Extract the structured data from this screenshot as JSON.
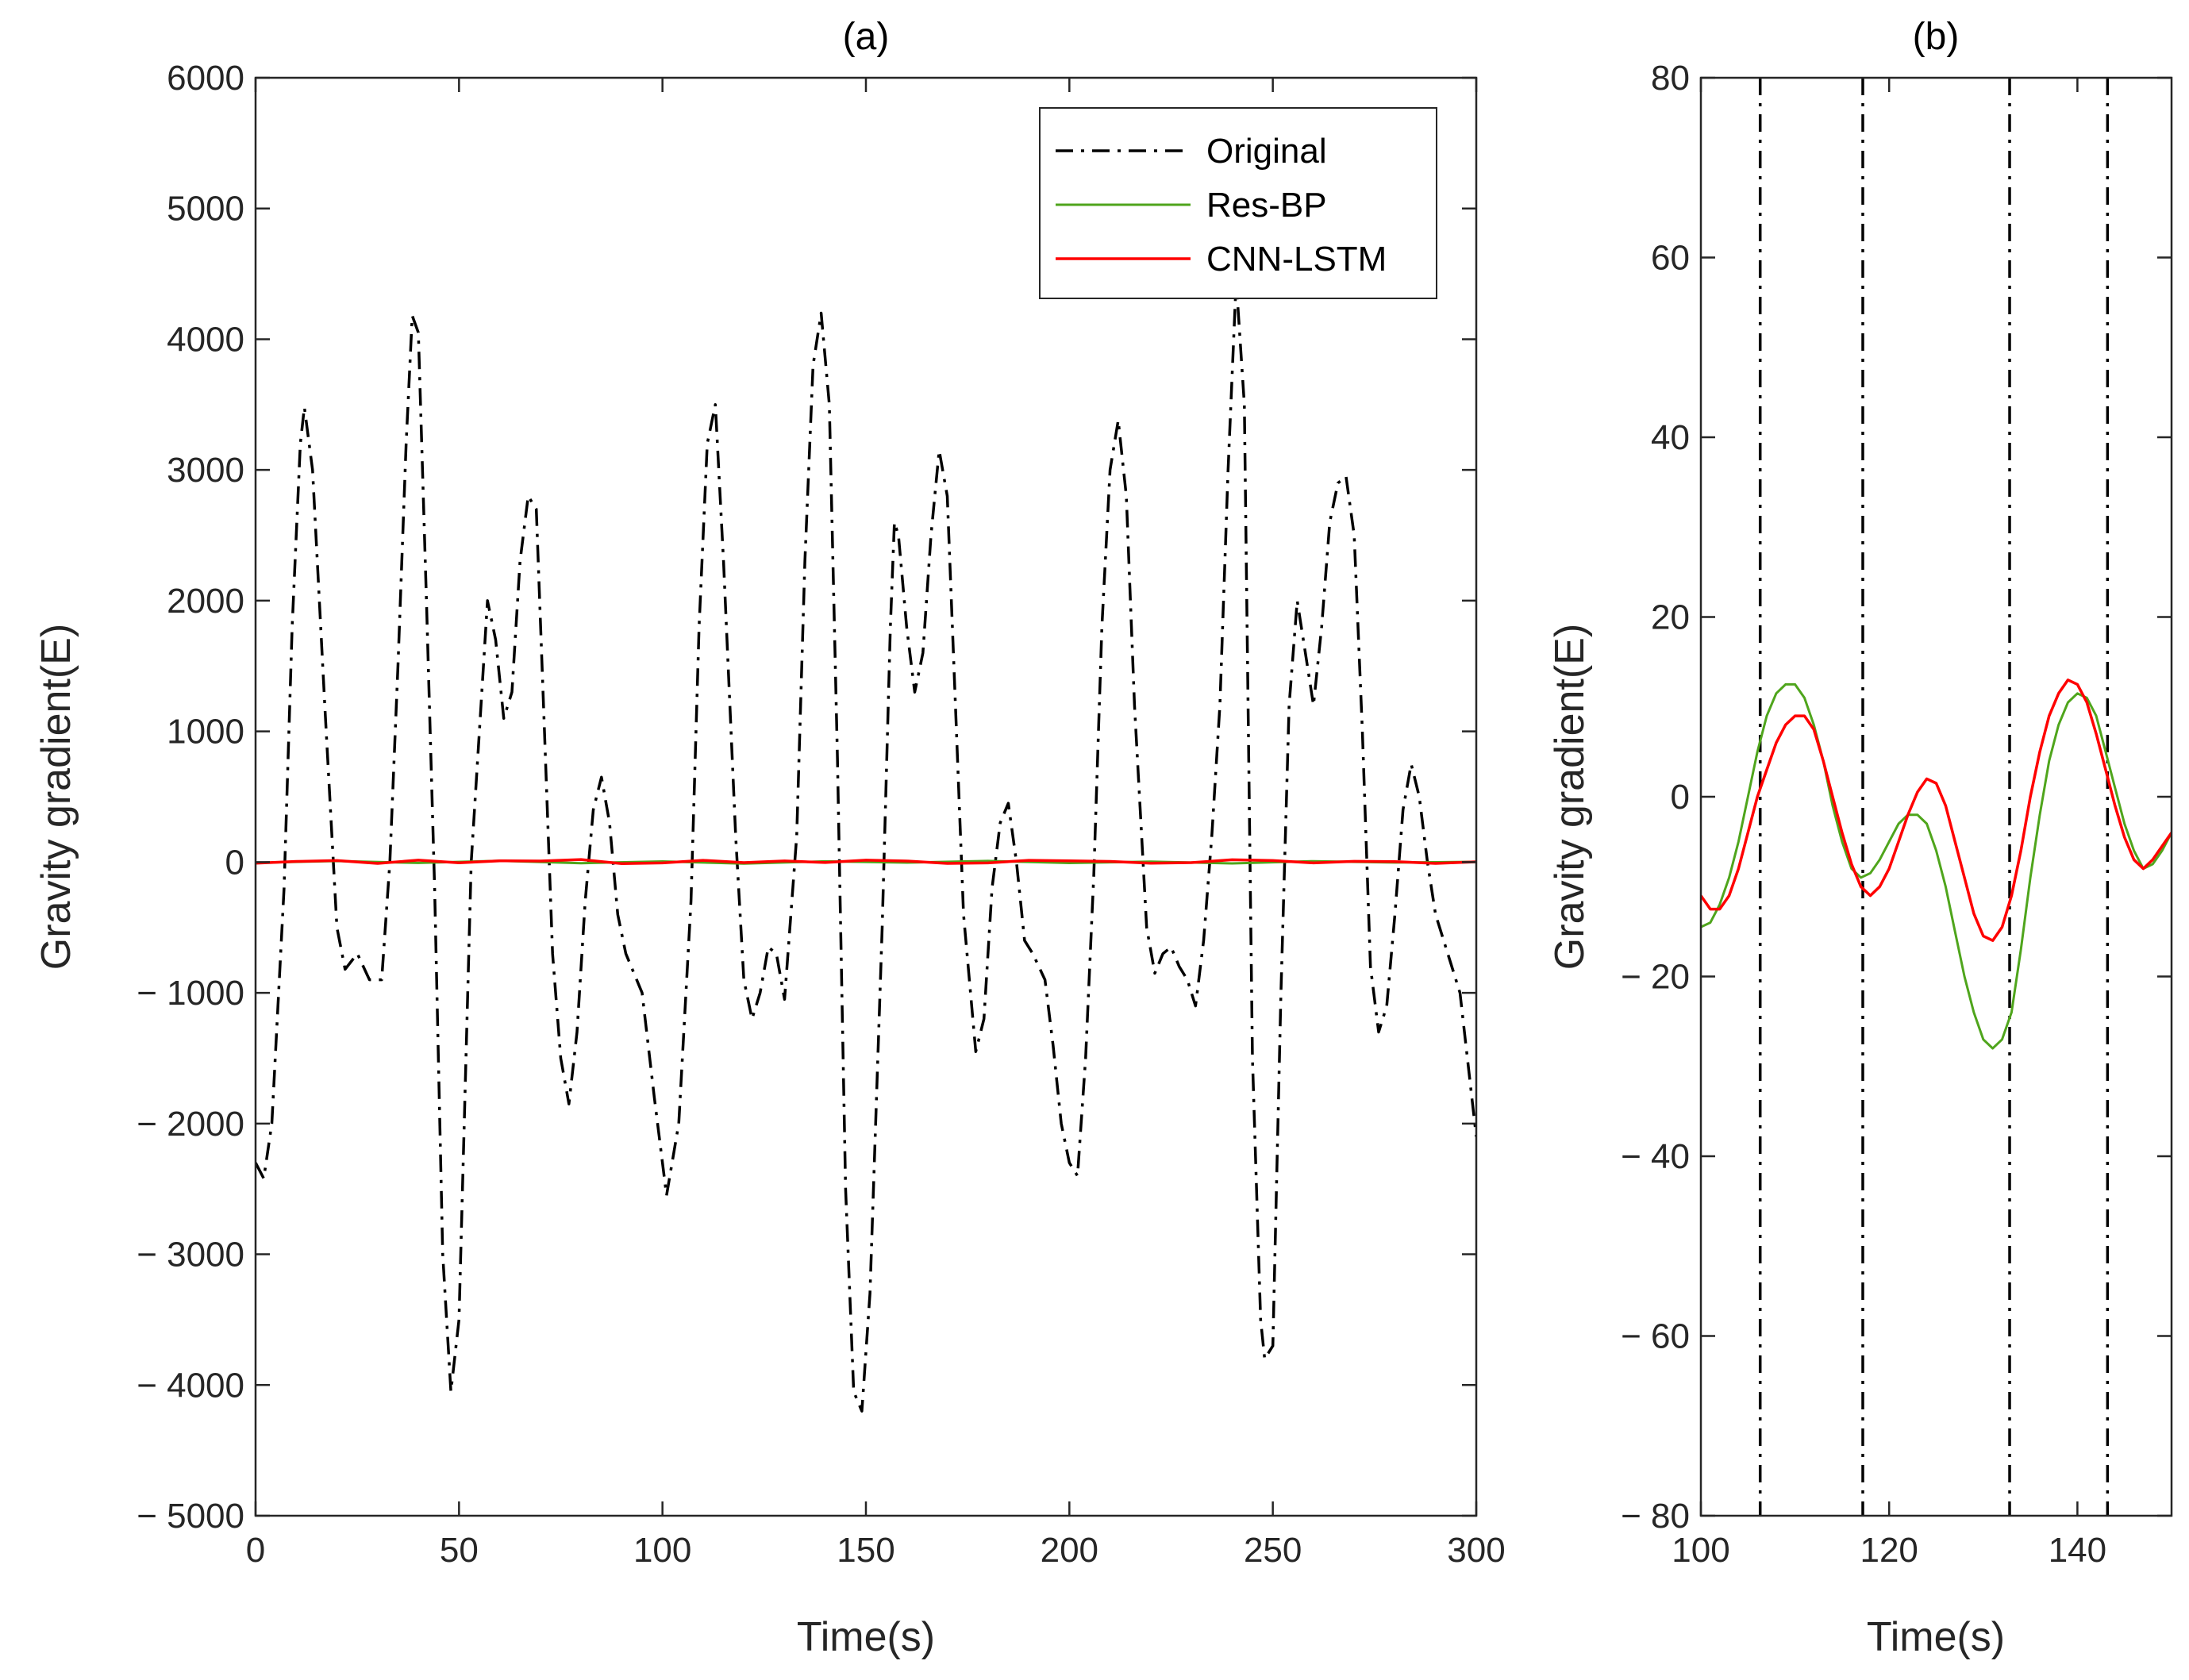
{
  "colors": {
    "original": "#000000",
    "res_bp": "#4fa51c",
    "cnn_lstm": "#ff0000",
    "axes": "#262626"
  },
  "chart_data": [
    {
      "type": "line",
      "title": "(a)",
      "xlabel": "Time(s)",
      "ylabel": "Gravity gradient(E)",
      "xlim": [
        0,
        300
      ],
      "ylim": [
        -5000,
        6000
      ],
      "xticks": [
        0,
        50,
        100,
        150,
        200,
        250,
        300
      ],
      "yticks": [
        -5000,
        -4000,
        -3000,
        -2000,
        -1000,
        0,
        1000,
        2000,
        3000,
        4000,
        5000,
        6000
      ],
      "xtick_labels": [
        "0",
        "50",
        "100",
        "150",
        "200",
        "250",
        "300"
      ],
      "ytick_labels": [
        "− 5000",
        "− 4000",
        "− 3000",
        "− 2000",
        "− 1000",
        "0",
        "1000",
        "2000",
        "3000",
        "4000",
        "5000",
        "6000"
      ],
      "legend": {
        "position": "top-right",
        "entries": [
          "Original",
          "Res-BP",
          "CNN-LSTM"
        ]
      },
      "series": [
        {
          "name": "Original",
          "style": "dash-dot",
          "x": [
            0,
            2,
            4,
            7,
            9,
            11,
            12,
            14,
            17,
            20,
            22,
            25,
            28,
            31,
            33,
            35,
            37,
            38.5,
            40,
            42,
            44,
            46,
            48,
            50,
            53,
            55,
            57,
            59,
            61,
            63,
            65,
            67,
            69,
            71,
            73,
            75,
            77,
            79,
            81,
            83,
            85,
            87,
            89,
            91,
            95,
            98,
            101,
            104,
            107,
            109,
            111,
            113,
            115,
            118,
            120,
            122,
            124,
            126,
            128,
            130,
            133,
            135,
            137,
            139,
            141,
            143,
            145,
            147,
            149,
            151,
            154,
            156,
            157,
            158,
            160,
            162,
            164,
            166,
            168,
            170,
            172,
            174,
            177,
            179,
            181,
            183,
            185,
            187,
            189,
            191,
            194,
            196,
            198,
            200,
            202,
            204,
            206,
            208,
            210,
            212,
            214,
            216,
            219,
            221,
            223,
            225,
            227,
            229,
            231,
            233,
            235,
            237,
            239,
            241,
            243,
            245,
            247,
            248,
            250,
            252,
            254,
            256,
            258,
            260,
            262,
            264,
            266,
            268,
            270,
            272,
            274,
            276,
            278,
            280,
            282,
            284,
            286,
            288,
            290,
            293,
            296,
            300
          ],
          "y": [
            -2300,
            -2420,
            -2000,
            -200,
            1800,
            3200,
            3480,
            3000,
            1200,
            -500,
            -820,
            -700,
            -900,
            -900,
            0,
            1500,
            3200,
            4180,
            4050,
            2000,
            -200,
            -3000,
            -4050,
            -3500,
            0,
            1000,
            2000,
            1700,
            1100,
            1300,
            2300,
            2800,
            2700,
            1000,
            -700,
            -1500,
            -1850,
            -1300,
            -300,
            400,
            650,
            300,
            -400,
            -700,
            -1000,
            -1800,
            -2550,
            -2000,
            -300,
            1800,
            3200,
            3500,
            2300,
            200,
            -900,
            -1200,
            -1000,
            -650,
            -700,
            -1050,
            200,
            2300,
            3800,
            4200,
            3500,
            800,
            -2500,
            -4050,
            -4200,
            -3300,
            -500,
            1800,
            2600,
            2500,
            1800,
            1300,
            1600,
            2500,
            3150,
            2800,
            1200,
            -400,
            -1450,
            -1200,
            -200,
            300,
            450,
            0,
            -600,
            -700,
            -900,
            -1400,
            -2000,
            -2300,
            -2400,
            -1500,
            -100,
            1800,
            3000,
            3380,
            2800,
            1200,
            -500,
            -850,
            -700,
            -650,
            -800,
            -900,
            -1100,
            -600,
            200,
            1200,
            3000,
            4450,
            3500,
            -1500,
            -3500,
            -3800,
            -3700,
            -1000,
            1200,
            2000,
            1600,
            1200,
            1800,
            2600,
            2900,
            2950,
            2500,
            1000,
            -800,
            -1300,
            -1100,
            -400,
            400,
            750,
            500,
            0,
            -400,
            -700,
            -1000,
            -2100
          ]
        },
        {
          "name": "Res-BP",
          "style": "solid",
          "x": [
            0,
            20,
            40,
            60,
            80,
            100,
            120,
            140,
            160,
            180,
            200,
            220,
            240,
            260,
            280,
            300
          ],
          "y": [
            -5,
            8,
            -6,
            10,
            -8,
            5,
            -12,
            6,
            -4,
            9,
            -7,
            4,
            -10,
            7,
            -3,
            2
          ]
        },
        {
          "name": "CNN-LSTM",
          "style": "solid",
          "x": [
            0,
            10,
            20,
            30,
            40,
            50,
            60,
            70,
            80,
            90,
            100,
            110,
            120,
            130,
            140,
            150,
            160,
            170,
            180,
            190,
            200,
            210,
            220,
            230,
            240,
            250,
            260,
            270,
            280,
            290,
            300
          ],
          "y": [
            -8,
            5,
            12,
            -10,
            15,
            -5,
            10,
            8,
            20,
            -12,
            -6,
            14,
            -4,
            9,
            -3,
            15,
            8,
            -10,
            -6,
            14,
            10,
            5,
            -8,
            -4,
            18,
            12,
            -6,
            6,
            4,
            -10,
            2
          ]
        }
      ]
    },
    {
      "type": "line",
      "title": "(b)",
      "xlabel": "Time(s)",
      "ylabel": "Gravity gradient(E)",
      "xlim": [
        100,
        150
      ],
      "ylim": [
        -80,
        80
      ],
      "xticks": [
        100,
        120,
        140
      ],
      "yticks": [
        -80,
        -60,
        -40,
        -20,
        0,
        20,
        40,
        60,
        80
      ],
      "xtick_labels": [
        "100",
        "120",
        "140"
      ],
      "ytick_labels": [
        "− 80",
        "− 60",
        "− 40",
        "− 20",
        "0",
        "20",
        "40",
        "60",
        "80"
      ],
      "vertical_lines_x": [
        106.3,
        117.2,
        132.8,
        143.2
      ],
      "series": [
        {
          "name": "Res-BP",
          "style": "solid",
          "x": [
            100,
            101,
            102,
            103,
            104,
            105,
            106,
            107,
            108,
            109,
            110,
            111,
            112,
            113,
            114,
            115,
            116,
            117,
            118,
            119,
            120,
            121,
            122,
            123,
            124,
            125,
            126,
            127,
            128,
            129,
            130,
            131,
            132,
            133,
            134,
            135,
            136,
            137,
            138,
            139,
            140,
            141,
            142,
            143,
            144,
            145,
            146,
            147,
            148,
            149,
            150
          ],
          "y": [
            -14.5,
            -14,
            -12,
            -9,
            -5,
            0,
            5,
            9,
            11.5,
            12.5,
            12.5,
            11,
            8,
            4,
            -1,
            -5,
            -8,
            -9,
            -8.5,
            -7,
            -5,
            -3,
            -2,
            -2,
            -3,
            -6,
            -10,
            -15,
            -20,
            -24,
            -27,
            -28,
            -27,
            -24,
            -17,
            -9,
            -2,
            4,
            8,
            10.5,
            11.5,
            11,
            9,
            5,
            1,
            -3,
            -6,
            -8,
            -7.5,
            -6,
            -4
          ]
        },
        {
          "name": "CNN-LSTM",
          "style": "solid",
          "x": [
            100,
            101,
            102,
            103,
            104,
            105,
            106,
            107,
            108,
            109,
            110,
            111,
            112,
            113,
            114,
            115,
            116,
            117,
            118,
            119,
            120,
            121,
            122,
            123,
            124,
            125,
            126,
            127,
            128,
            129,
            130,
            131,
            132,
            133,
            134,
            135,
            136,
            137,
            138,
            139,
            140,
            141,
            142,
            143,
            144,
            145,
            146,
            147,
            148,
            149,
            150
          ],
          "y": [
            -11,
            -12.5,
            -12.5,
            -11,
            -8,
            -4,
            0,
            3,
            6,
            8,
            9,
            9,
            7.5,
            4,
            0,
            -4,
            -7.5,
            -10,
            -11,
            -10,
            -8,
            -5,
            -2,
            0.5,
            2,
            1.5,
            -1,
            -5,
            -9,
            -13,
            -15.5,
            -16,
            -14.5,
            -11,
            -6,
            0,
            5,
            9,
            11.5,
            13,
            12.5,
            10.5,
            7,
            3,
            -1,
            -4.5,
            -7,
            -8,
            -7,
            -5.5,
            -4
          ]
        }
      ]
    }
  ]
}
